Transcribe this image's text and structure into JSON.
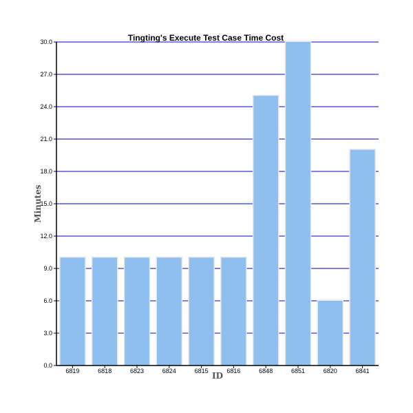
{
  "chart_data": {
    "type": "bar",
    "title": "Tingting's Execute Test Case Time Cost",
    "xlabel": "ID",
    "ylabel": "Minutes",
    "categories": [
      "6819",
      "6818",
      "6823",
      "6824",
      "6815",
      "6816",
      "6848",
      "6851",
      "6820",
      "6841"
    ],
    "values": [
      10,
      10,
      10,
      10,
      10,
      10,
      25,
      30,
      6,
      20
    ],
    "ylim": [
      0,
      30
    ],
    "yticks": [
      "0.0",
      "3.0",
      "6.0",
      "9.0",
      "12.0",
      "15.0",
      "18.0",
      "21.0",
      "24.0",
      "27.0",
      "30.0"
    ],
    "grid": true,
    "legend": "none",
    "colors": {
      "bar": "#8fbfef",
      "bar_outline": "#e6e6e6",
      "grid": "#5555dd",
      "axis": "#000000"
    }
  }
}
